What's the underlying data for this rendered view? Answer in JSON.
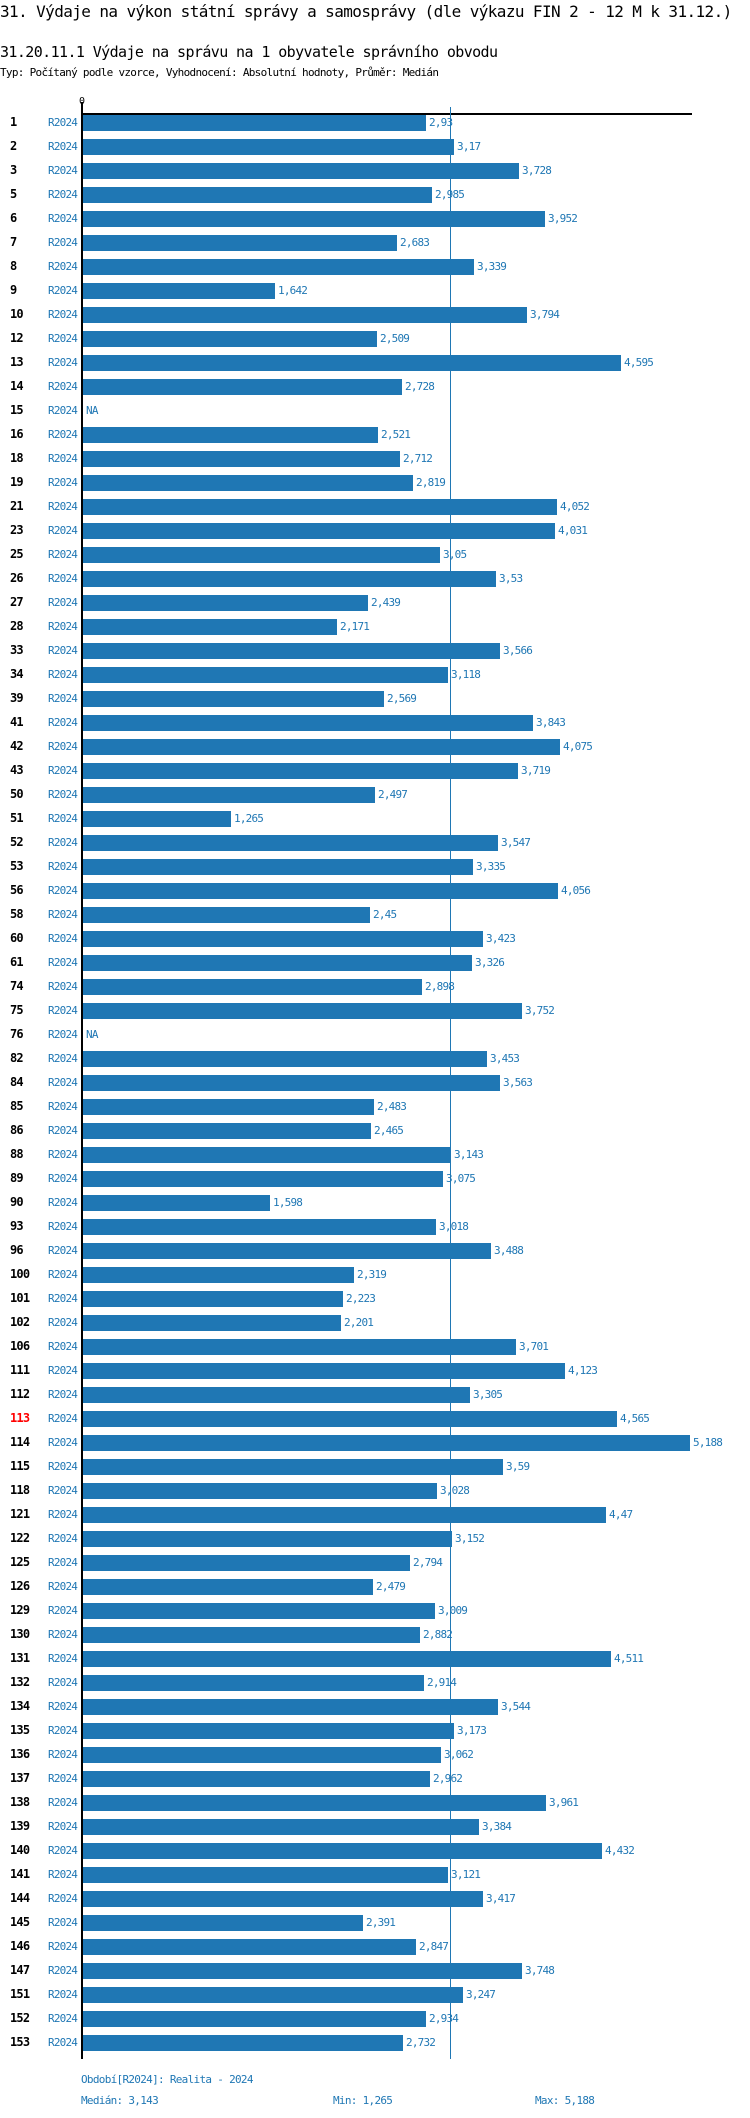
{
  "header": {
    "title": "31. Výdaje na výkon státní správy a samosprávy (dle výkazu FIN 2 - 12 M k 31.12.)",
    "subtitle": "31.20.11.1 Výdaje na správu na 1 obyvatele správního obvodu",
    "typ": "Typ: Počítaný podle vzorce, Vyhodnocení: Absolutní hodnoty, Průměr: Medián"
  },
  "colors": {
    "bar": "#1f77b4",
    "highlight": "#ff0000",
    "axis": "#000000"
  },
  "chart_data": {
    "type": "bar",
    "orientation": "horizontal",
    "x_tick_labels": [
      "0"
    ],
    "xlim": [
      0,
      5.188
    ],
    "median": 3.143,
    "grid": false,
    "highlighted_category": "113",
    "rows": [
      {
        "id": "1",
        "period": "R2024",
        "value": 2.93,
        "label": "2,93"
      },
      {
        "id": "2",
        "period": "R2024",
        "value": 3.17,
        "label": "3,17"
      },
      {
        "id": "3",
        "period": "R2024",
        "value": 3.728,
        "label": "3,728"
      },
      {
        "id": "5",
        "period": "R2024",
        "value": 2.985,
        "label": "2,985"
      },
      {
        "id": "6",
        "period": "R2024",
        "value": 3.952,
        "label": "3,952"
      },
      {
        "id": "7",
        "period": "R2024",
        "value": 2.683,
        "label": "2,683"
      },
      {
        "id": "8",
        "period": "R2024",
        "value": 3.339,
        "label": "3,339"
      },
      {
        "id": "9",
        "period": "R2024",
        "value": 1.642,
        "label": "1,642"
      },
      {
        "id": "10",
        "period": "R2024",
        "value": 3.794,
        "label": "3,794"
      },
      {
        "id": "12",
        "period": "R2024",
        "value": 2.509,
        "label": "2,509"
      },
      {
        "id": "13",
        "period": "R2024",
        "value": 4.595,
        "label": "4,595"
      },
      {
        "id": "14",
        "period": "R2024",
        "value": 2.728,
        "label": "2,728"
      },
      {
        "id": "15",
        "period": "R2024",
        "value": null,
        "label": "NA"
      },
      {
        "id": "16",
        "period": "R2024",
        "value": 2.521,
        "label": "2,521"
      },
      {
        "id": "18",
        "period": "R2024",
        "value": 2.712,
        "label": "2,712"
      },
      {
        "id": "19",
        "period": "R2024",
        "value": 2.819,
        "label": "2,819"
      },
      {
        "id": "21",
        "period": "R2024",
        "value": 4.052,
        "label": "4,052"
      },
      {
        "id": "23",
        "period": "R2024",
        "value": 4.031,
        "label": "4,031"
      },
      {
        "id": "25",
        "period": "R2024",
        "value": 3.05,
        "label": "3,05"
      },
      {
        "id": "26",
        "period": "R2024",
        "value": 3.53,
        "label": "3,53"
      },
      {
        "id": "27",
        "period": "R2024",
        "value": 2.439,
        "label": "2,439"
      },
      {
        "id": "28",
        "period": "R2024",
        "value": 2.171,
        "label": "2,171"
      },
      {
        "id": "33",
        "period": "R2024",
        "value": 3.566,
        "label": "3,566"
      },
      {
        "id": "34",
        "period": "R2024",
        "value": 3.118,
        "label": "3,118"
      },
      {
        "id": "39",
        "period": "R2024",
        "value": 2.569,
        "label": "2,569"
      },
      {
        "id": "41",
        "period": "R2024",
        "value": 3.843,
        "label": "3,843"
      },
      {
        "id": "42",
        "period": "R2024",
        "value": 4.075,
        "label": "4,075"
      },
      {
        "id": "43",
        "period": "R2024",
        "value": 3.719,
        "label": "3,719"
      },
      {
        "id": "50",
        "period": "R2024",
        "value": 2.497,
        "label": "2,497"
      },
      {
        "id": "51",
        "period": "R2024",
        "value": 1.265,
        "label": "1,265"
      },
      {
        "id": "52",
        "period": "R2024",
        "value": 3.547,
        "label": "3,547"
      },
      {
        "id": "53",
        "period": "R2024",
        "value": 3.335,
        "label": "3,335"
      },
      {
        "id": "56",
        "period": "R2024",
        "value": 4.056,
        "label": "4,056"
      },
      {
        "id": "58",
        "period": "R2024",
        "value": 2.45,
        "label": "2,45"
      },
      {
        "id": "60",
        "period": "R2024",
        "value": 3.423,
        "label": "3,423"
      },
      {
        "id": "61",
        "period": "R2024",
        "value": 3.326,
        "label": "3,326"
      },
      {
        "id": "74",
        "period": "R2024",
        "value": 2.898,
        "label": "2,898"
      },
      {
        "id": "75",
        "period": "R2024",
        "value": 3.752,
        "label": "3,752"
      },
      {
        "id": "76",
        "period": "R2024",
        "value": null,
        "label": "NA"
      },
      {
        "id": "82",
        "period": "R2024",
        "value": 3.453,
        "label": "3,453"
      },
      {
        "id": "84",
        "period": "R2024",
        "value": 3.563,
        "label": "3,563"
      },
      {
        "id": "85",
        "period": "R2024",
        "value": 2.483,
        "label": "2,483"
      },
      {
        "id": "86",
        "period": "R2024",
        "value": 2.465,
        "label": "2,465"
      },
      {
        "id": "88",
        "period": "R2024",
        "value": 3.143,
        "label": "3,143"
      },
      {
        "id": "89",
        "period": "R2024",
        "value": 3.075,
        "label": "3,075"
      },
      {
        "id": "90",
        "period": "R2024",
        "value": 1.598,
        "label": "1,598"
      },
      {
        "id": "93",
        "period": "R2024",
        "value": 3.018,
        "label": "3,018"
      },
      {
        "id": "96",
        "period": "R2024",
        "value": 3.488,
        "label": "3,488"
      },
      {
        "id": "100",
        "period": "R2024",
        "value": 2.319,
        "label": "2,319"
      },
      {
        "id": "101",
        "period": "R2024",
        "value": 2.223,
        "label": "2,223"
      },
      {
        "id": "102",
        "period": "R2024",
        "value": 2.201,
        "label": "2,201"
      },
      {
        "id": "106",
        "period": "R2024",
        "value": 3.701,
        "label": "3,701"
      },
      {
        "id": "111",
        "period": "R2024",
        "value": 4.123,
        "label": "4,123"
      },
      {
        "id": "112",
        "period": "R2024",
        "value": 3.305,
        "label": "3,305"
      },
      {
        "id": "113",
        "period": "R2024",
        "value": 4.565,
        "label": "4,565"
      },
      {
        "id": "114",
        "period": "R2024",
        "value": 5.188,
        "label": "5,188"
      },
      {
        "id": "115",
        "period": "R2024",
        "value": 3.59,
        "label": "3,59"
      },
      {
        "id": "118",
        "period": "R2024",
        "value": 3.028,
        "label": "3,028"
      },
      {
        "id": "121",
        "period": "R2024",
        "value": 4.47,
        "label": "4,47"
      },
      {
        "id": "122",
        "period": "R2024",
        "value": 3.152,
        "label": "3,152"
      },
      {
        "id": "125",
        "period": "R2024",
        "value": 2.794,
        "label": "2,794"
      },
      {
        "id": "126",
        "period": "R2024",
        "value": 2.479,
        "label": "2,479"
      },
      {
        "id": "129",
        "period": "R2024",
        "value": 3.009,
        "label": "3,009"
      },
      {
        "id": "130",
        "period": "R2024",
        "value": 2.882,
        "label": "2,882"
      },
      {
        "id": "131",
        "period": "R2024",
        "value": 4.511,
        "label": "4,511"
      },
      {
        "id": "132",
        "period": "R2024",
        "value": 2.914,
        "label": "2,914"
      },
      {
        "id": "134",
        "period": "R2024",
        "value": 3.544,
        "label": "3,544"
      },
      {
        "id": "135",
        "period": "R2024",
        "value": 3.173,
        "label": "3,173"
      },
      {
        "id": "136",
        "period": "R2024",
        "value": 3.062,
        "label": "3,062"
      },
      {
        "id": "137",
        "period": "R2024",
        "value": 2.962,
        "label": "2,962"
      },
      {
        "id": "138",
        "period": "R2024",
        "value": 3.961,
        "label": "3,961"
      },
      {
        "id": "139",
        "period": "R2024",
        "value": 3.384,
        "label": "3,384"
      },
      {
        "id": "140",
        "period": "R2024",
        "value": 4.432,
        "label": "4,432"
      },
      {
        "id": "141",
        "period": "R2024",
        "value": 3.121,
        "label": "3,121"
      },
      {
        "id": "144",
        "period": "R2024",
        "value": 3.417,
        "label": "3,417"
      },
      {
        "id": "145",
        "period": "R2024",
        "value": 2.391,
        "label": "2,391"
      },
      {
        "id": "146",
        "period": "R2024",
        "value": 2.847,
        "label": "2,847"
      },
      {
        "id": "147",
        "period": "R2024",
        "value": 3.748,
        "label": "3,748"
      },
      {
        "id": "151",
        "period": "R2024",
        "value": 3.247,
        "label": "3,247"
      },
      {
        "id": "152",
        "period": "R2024",
        "value": 2.934,
        "label": "2,934"
      },
      {
        "id": "153",
        "period": "R2024",
        "value": 2.732,
        "label": "2,732"
      }
    ]
  },
  "footer": {
    "period_legend": "Období[R2024]: Realita - 2024",
    "median": "Medián: 3,143",
    "min": "Min: 1,265",
    "max": "Max: 5,188"
  }
}
